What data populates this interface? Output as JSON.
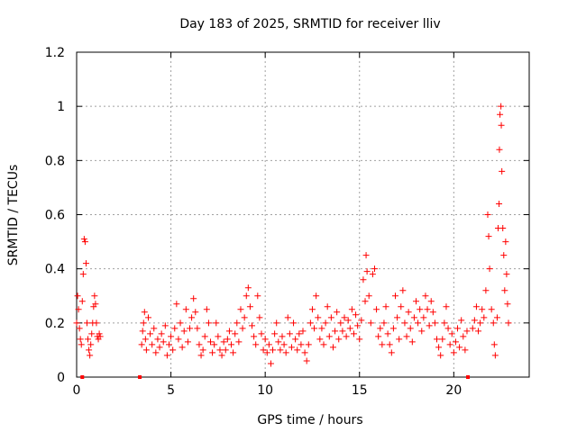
{
  "chart_data": {
    "type": "scatter",
    "title": "Day 183 of 2025, SRMTID for receiver lliv",
    "xlabel": "GPS time / hours",
    "ylabel": "SRMTID / TECUs",
    "xlim": [
      0,
      24
    ],
    "ylim": [
      0,
      1.2
    ],
    "x_ticks": [
      0,
      5,
      10,
      15,
      20
    ],
    "x_tick_labels": [
      "0",
      "5",
      "10",
      "15",
      "20"
    ],
    "y_ticks": [
      0,
      0.2,
      0.4,
      0.6,
      0.8,
      1.0,
      1.2
    ],
    "y_tick_labels": [
      "0",
      "0.2",
      "0.4",
      "0.6",
      "0.8",
      "1",
      "1.2"
    ],
    "grid": true,
    "marker": "+",
    "color": "#ff0000",
    "series": [
      {
        "name": "SRMTID",
        "points": [
          [
            0.0,
            0.2
          ],
          [
            0.05,
            0.3
          ],
          [
            0.1,
            0.25
          ],
          [
            0.15,
            0.18
          ],
          [
            0.2,
            0.14
          ],
          [
            0.25,
            0.12
          ],
          [
            0.3,
            0.28
          ],
          [
            0.35,
            0.38
          ],
          [
            0.4,
            0.51
          ],
          [
            0.45,
            0.5
          ],
          [
            0.5,
            0.42
          ],
          [
            0.55,
            0.2
          ],
          [
            0.6,
            0.14
          ],
          [
            0.65,
            0.1
          ],
          [
            0.7,
            0.08
          ],
          [
            0.75,
            0.12
          ],
          [
            0.8,
            0.16
          ],
          [
            0.85,
            0.2
          ],
          [
            0.9,
            0.26
          ],
          [
            0.95,
            0.3
          ],
          [
            1.0,
            0.27
          ],
          [
            1.05,
            0.2
          ],
          [
            1.1,
            0.15
          ],
          [
            1.15,
            0.14
          ],
          [
            1.2,
            0.16
          ],
          [
            1.25,
            0.15
          ],
          [
            3.45,
            0.12
          ],
          [
            3.5,
            0.17
          ],
          [
            3.55,
            0.2
          ],
          [
            3.6,
            0.24
          ],
          [
            3.65,
            0.14
          ],
          [
            3.7,
            0.1
          ],
          [
            3.8,
            0.22
          ],
          [
            3.9,
            0.16
          ],
          [
            4.0,
            0.12
          ],
          [
            4.1,
            0.18
          ],
          [
            4.2,
            0.09
          ],
          [
            4.3,
            0.14
          ],
          [
            4.4,
            0.11
          ],
          [
            4.5,
            0.16
          ],
          [
            4.6,
            0.13
          ],
          [
            4.7,
            0.19
          ],
          [
            4.8,
            0.08
          ],
          [
            4.9,
            0.12
          ],
          [
            5.0,
            0.15
          ],
          [
            5.1,
            0.1
          ],
          [
            5.2,
            0.18
          ],
          [
            5.3,
            0.27
          ],
          [
            5.4,
            0.14
          ],
          [
            5.5,
            0.2
          ],
          [
            5.6,
            0.11
          ],
          [
            5.7,
            0.17
          ],
          [
            5.8,
            0.25
          ],
          [
            5.9,
            0.13
          ],
          [
            6.0,
            0.18
          ],
          [
            6.1,
            0.22
          ],
          [
            6.2,
            0.29
          ],
          [
            6.3,
            0.24
          ],
          [
            6.4,
            0.18
          ],
          [
            6.5,
            0.12
          ],
          [
            6.6,
            0.08
          ],
          [
            6.7,
            0.1
          ],
          [
            6.8,
            0.15
          ],
          [
            6.9,
            0.25
          ],
          [
            7.0,
            0.2
          ],
          [
            7.1,
            0.13
          ],
          [
            7.2,
            0.09
          ],
          [
            7.3,
            0.12
          ],
          [
            7.4,
            0.2
          ],
          [
            7.5,
            0.15
          ],
          [
            7.6,
            0.1
          ],
          [
            7.7,
            0.08
          ],
          [
            7.8,
            0.13
          ],
          [
            7.9,
            0.1
          ],
          [
            8.0,
            0.14
          ],
          [
            8.1,
            0.17
          ],
          [
            8.2,
            0.12
          ],
          [
            8.3,
            0.09
          ],
          [
            8.4,
            0.16
          ],
          [
            8.5,
            0.2
          ],
          [
            8.6,
            0.13
          ],
          [
            8.7,
            0.25
          ],
          [
            8.8,
            0.18
          ],
          [
            8.9,
            0.22
          ],
          [
            9.0,
            0.3
          ],
          [
            9.1,
            0.33
          ],
          [
            9.2,
            0.26
          ],
          [
            9.3,
            0.19
          ],
          [
            9.4,
            0.15
          ],
          [
            9.5,
            0.12
          ],
          [
            9.6,
            0.3
          ],
          [
            9.7,
            0.22
          ],
          [
            9.8,
            0.16
          ],
          [
            9.9,
            0.1
          ],
          [
            10.0,
            0.14
          ],
          [
            10.1,
            0.09
          ],
          [
            10.2,
            0.12
          ],
          [
            10.3,
            0.05
          ],
          [
            10.4,
            0.1
          ],
          [
            10.5,
            0.16
          ],
          [
            10.6,
            0.2
          ],
          [
            10.7,
            0.13
          ],
          [
            10.8,
            0.1
          ],
          [
            10.9,
            0.15
          ],
          [
            11.0,
            0.12
          ],
          [
            11.1,
            0.09
          ],
          [
            11.2,
            0.22
          ],
          [
            11.3,
            0.16
          ],
          [
            11.4,
            0.11
          ],
          [
            11.5,
            0.2
          ],
          [
            11.6,
            0.14
          ],
          [
            11.7,
            0.1
          ],
          [
            11.8,
            0.16
          ],
          [
            11.9,
            0.12
          ],
          [
            12.0,
            0.17
          ],
          [
            12.1,
            0.09
          ],
          [
            12.2,
            0.06
          ],
          [
            12.3,
            0.12
          ],
          [
            12.4,
            0.2
          ],
          [
            12.5,
            0.25
          ],
          [
            12.6,
            0.18
          ],
          [
            12.7,
            0.3
          ],
          [
            12.8,
            0.22
          ],
          [
            12.9,
            0.14
          ],
          [
            13.0,
            0.18
          ],
          [
            13.1,
            0.12
          ],
          [
            13.2,
            0.2
          ],
          [
            13.3,
            0.26
          ],
          [
            13.4,
            0.15
          ],
          [
            13.5,
            0.22
          ],
          [
            13.6,
            0.11
          ],
          [
            13.7,
            0.17
          ],
          [
            13.8,
            0.24
          ],
          [
            13.9,
            0.14
          ],
          [
            14.0,
            0.2
          ],
          [
            14.1,
            0.17
          ],
          [
            14.2,
            0.22
          ],
          [
            14.3,
            0.15
          ],
          [
            14.4,
            0.21
          ],
          [
            14.5,
            0.18
          ],
          [
            14.6,
            0.25
          ],
          [
            14.7,
            0.16
          ],
          [
            14.8,
            0.23
          ],
          [
            14.9,
            0.19
          ],
          [
            15.0,
            0.14
          ],
          [
            15.1,
            0.21
          ],
          [
            15.2,
            0.36
          ],
          [
            15.3,
            0.28
          ],
          [
            15.35,
            0.45
          ],
          [
            15.4,
            0.39
          ],
          [
            15.5,
            0.3
          ],
          [
            15.6,
            0.2
          ],
          [
            15.7,
            0.38
          ],
          [
            15.8,
            0.4
          ],
          [
            15.9,
            0.25
          ],
          [
            16.0,
            0.15
          ],
          [
            16.1,
            0.18
          ],
          [
            16.2,
            0.12
          ],
          [
            16.3,
            0.2
          ],
          [
            16.4,
            0.26
          ],
          [
            16.5,
            0.16
          ],
          [
            16.6,
            0.12
          ],
          [
            16.7,
            0.09
          ],
          [
            16.8,
            0.18
          ],
          [
            16.9,
            0.3
          ],
          [
            17.0,
            0.22
          ],
          [
            17.1,
            0.14
          ],
          [
            17.2,
            0.26
          ],
          [
            17.3,
            0.32
          ],
          [
            17.4,
            0.2
          ],
          [
            17.5,
            0.15
          ],
          [
            17.6,
            0.24
          ],
          [
            17.7,
            0.18
          ],
          [
            17.8,
            0.13
          ],
          [
            17.9,
            0.22
          ],
          [
            18.0,
            0.28
          ],
          [
            18.1,
            0.2
          ],
          [
            18.2,
            0.25
          ],
          [
            18.3,
            0.17
          ],
          [
            18.4,
            0.22
          ],
          [
            18.5,
            0.3
          ],
          [
            18.6,
            0.25
          ],
          [
            18.7,
            0.19
          ],
          [
            18.8,
            0.28
          ],
          [
            18.9,
            0.24
          ],
          [
            19.0,
            0.2
          ],
          [
            19.1,
            0.14
          ],
          [
            19.2,
            0.11
          ],
          [
            19.3,
            0.08
          ],
          [
            19.4,
            0.14
          ],
          [
            19.5,
            0.2
          ],
          [
            19.6,
            0.26
          ],
          [
            19.7,
            0.18
          ],
          [
            19.8,
            0.12
          ],
          [
            19.9,
            0.16
          ],
          [
            20.0,
            0.09
          ],
          [
            20.1,
            0.13
          ],
          [
            20.2,
            0.18
          ],
          [
            20.3,
            0.11
          ],
          [
            20.4,
            0.21
          ],
          [
            20.5,
            0.15
          ],
          [
            20.6,
            0.1
          ],
          [
            20.7,
            0.17
          ],
          [
            21.0,
            0.18
          ],
          [
            21.1,
            0.21
          ],
          [
            21.2,
            0.26
          ],
          [
            21.3,
            0.17
          ],
          [
            21.4,
            0.2
          ],
          [
            21.5,
            0.25
          ],
          [
            21.6,
            0.22
          ],
          [
            21.7,
            0.32
          ],
          [
            21.8,
            0.6
          ],
          [
            21.85,
            0.52
          ],
          [
            21.9,
            0.4
          ],
          [
            22.0,
            0.25
          ],
          [
            22.1,
            0.2
          ],
          [
            22.15,
            0.12
          ],
          [
            22.2,
            0.08
          ],
          [
            22.3,
            0.22
          ],
          [
            22.35,
            0.55
          ],
          [
            22.4,
            0.64
          ],
          [
            22.42,
            0.84
          ],
          [
            22.45,
            0.97
          ],
          [
            22.5,
            1.0
          ],
          [
            22.52,
            0.93
          ],
          [
            22.55,
            0.76
          ],
          [
            22.6,
            0.55
          ],
          [
            22.65,
            0.45
          ],
          [
            22.7,
            0.32
          ],
          [
            22.75,
            0.5
          ],
          [
            22.8,
            0.38
          ],
          [
            22.85,
            0.27
          ],
          [
            22.9,
            0.2
          ]
        ]
      }
    ],
    "data_gap_markers_x": [
      0.3,
      3.35,
      20.75
    ]
  }
}
